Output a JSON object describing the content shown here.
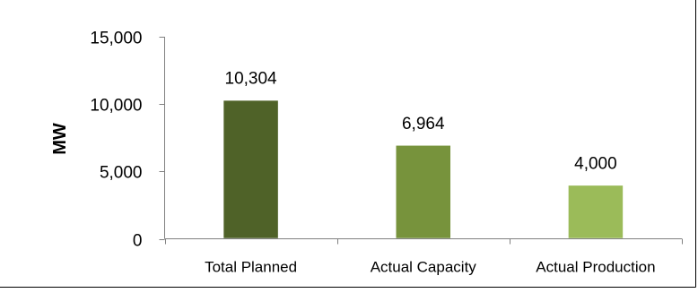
{
  "chart_data": {
    "type": "bar",
    "categories": [
      "Total Planned",
      "Actual Capacity",
      "Actual Production"
    ],
    "values": [
      10304,
      6964,
      4000
    ],
    "data_labels": [
      "10,304",
      "6,964",
      "4,000"
    ],
    "title": "",
    "xlabel": "",
    "ylabel": "MW",
    "ylim": [
      0,
      15000
    ],
    "yticks": [
      0,
      5000,
      10000,
      15000
    ],
    "ytick_labels": [
      "0",
      "5,000",
      "10,000",
      "15,000"
    ],
    "grid": false,
    "legend": "none",
    "bar_colors": [
      "#4f6228",
      "#77933c",
      "#9bbb59"
    ],
    "bar_edge_color": "#ffffff",
    "axis_color": "#808080",
    "border_color": "#000000"
  }
}
